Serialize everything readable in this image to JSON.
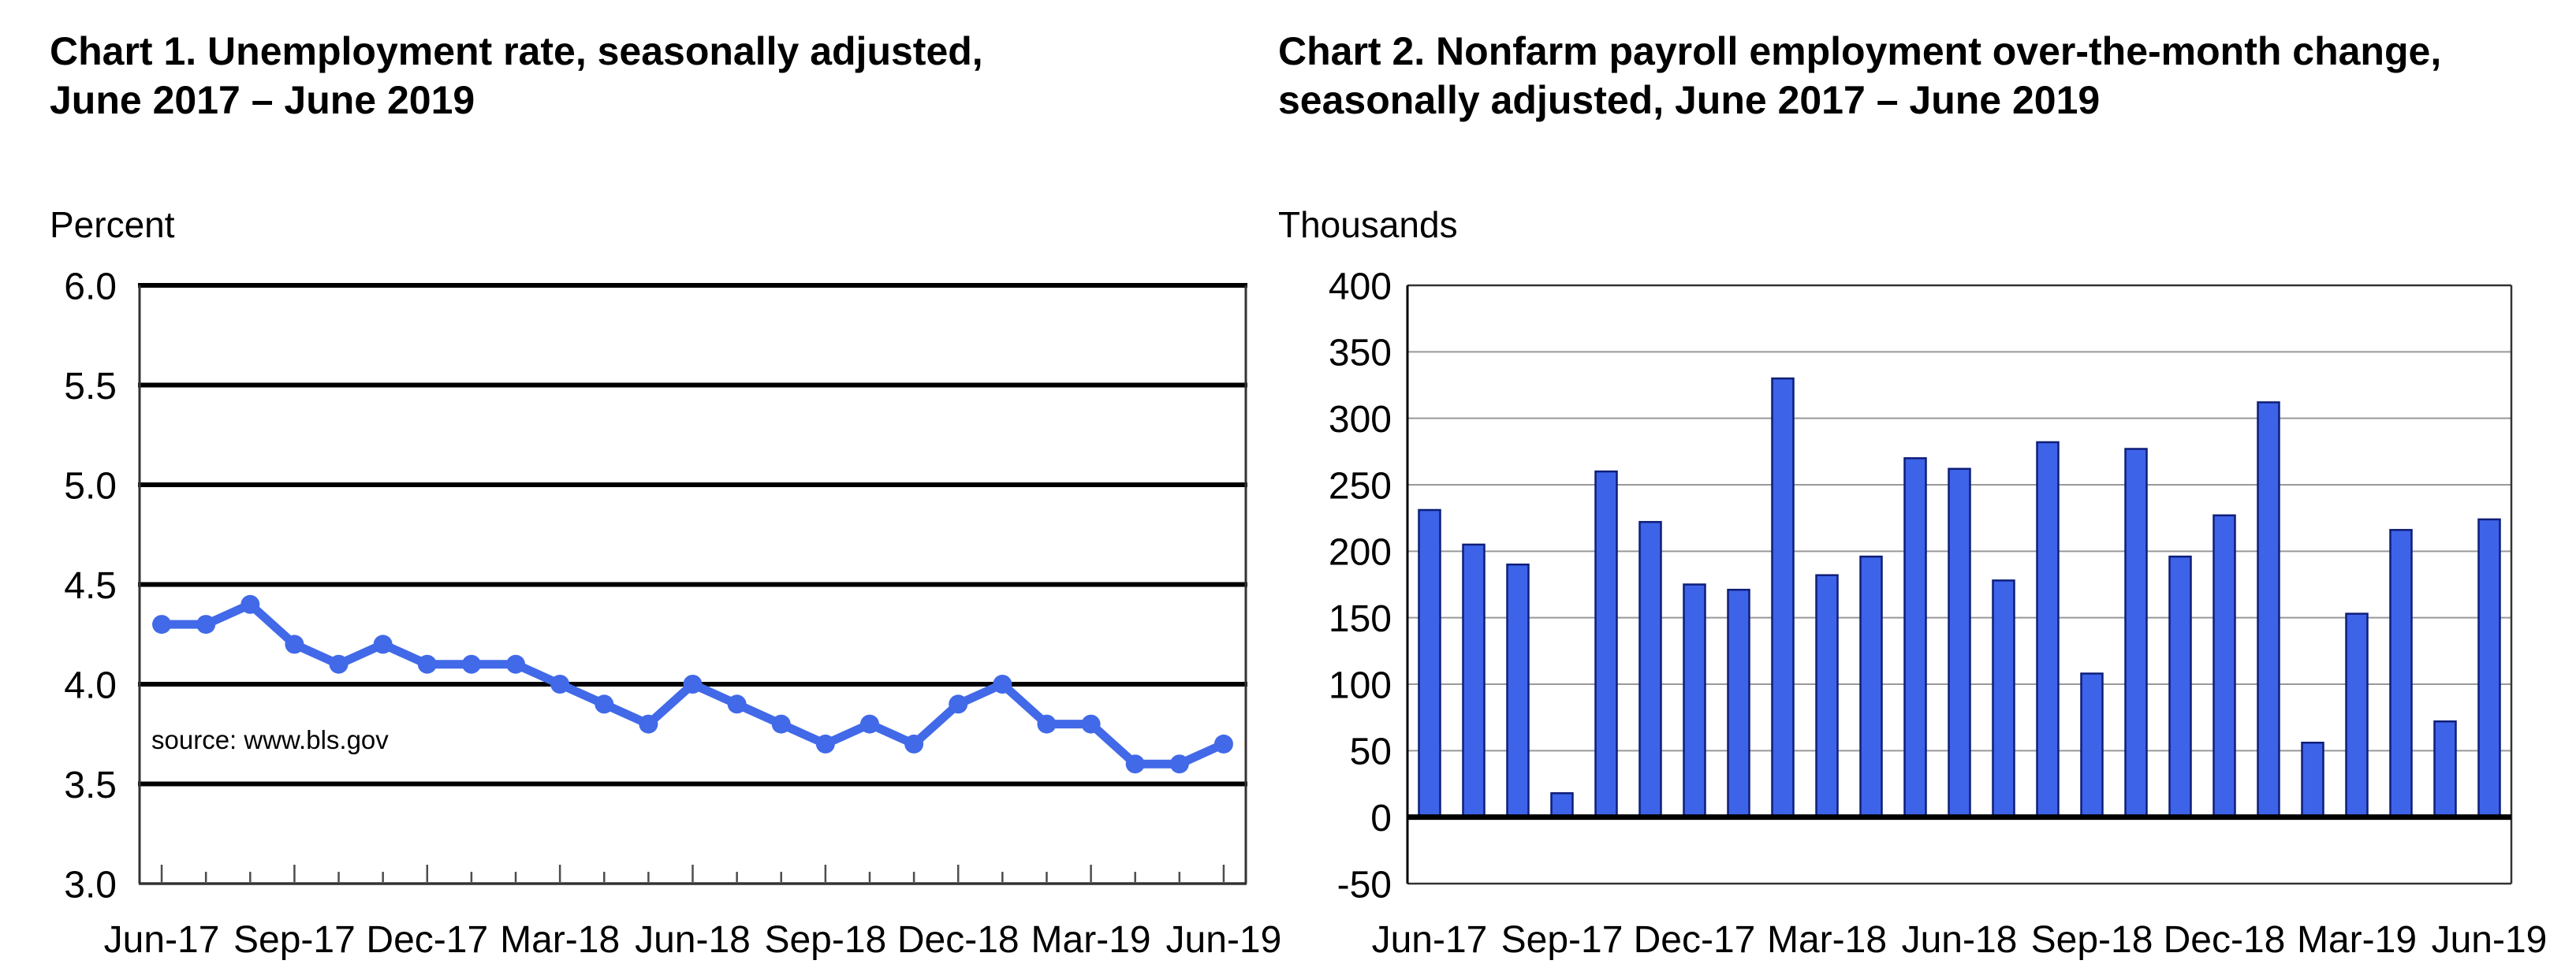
{
  "page": {
    "background": "#ffffff"
  },
  "chart1": {
    "title_line1": "Chart 1. Unemployment rate, seasonally adjusted,",
    "title_line2": "June 2017 – June 2019",
    "unit_label": "Percent",
    "source_note": "source: www.bls.gov"
  },
  "chart2": {
    "title_line1": "Chart 2. Nonfarm payroll employment over-the-month change,",
    "title_line2": "seasonally adjusted, June 2017 – June 2019",
    "unit_label": "Thousands"
  },
  "colors": {
    "line": "#4169e8",
    "marker": "#4169e8",
    "bar_fill": "#3d63e8",
    "bar_border": "#0f1e78",
    "grid_black": "#000000",
    "grid_gray": "#999999",
    "axis_dark": "#333333",
    "tick": "#4d4d4d",
    "text": "#000000"
  },
  "chart_data": [
    {
      "type": "line",
      "title": "Chart 1. Unemployment rate, seasonally adjusted, June 2017 – June 2019",
      "ylabel": "Percent",
      "x": [
        "Jun-17",
        "Jul-17",
        "Aug-17",
        "Sep-17",
        "Oct-17",
        "Nov-17",
        "Dec-17",
        "Jan-18",
        "Feb-18",
        "Mar-18",
        "Apr-18",
        "May-18",
        "Jun-18",
        "Jul-18",
        "Aug-18",
        "Sep-18",
        "Oct-18",
        "Nov-18",
        "Dec-18",
        "Jan-19",
        "Feb-19",
        "Mar-19",
        "Apr-19",
        "May-19",
        "Jun-19"
      ],
      "values": [
        4.3,
        4.3,
        4.4,
        4.2,
        4.1,
        4.2,
        4.1,
        4.1,
        4.1,
        4.0,
        3.9,
        3.8,
        4.0,
        3.9,
        3.8,
        3.7,
        3.8,
        3.7,
        3.9,
        4.0,
        3.8,
        3.8,
        3.6,
        3.6,
        3.7
      ],
      "ylim": [
        3.0,
        6.0
      ],
      "ytick_labels": [
        "6.0",
        "5.5",
        "5.0",
        "4.5",
        "4.0",
        "3.5",
        "3.0"
      ],
      "xtick_shown_every": 3,
      "xtick_labels_shown": [
        "Jun-17",
        "Sep-17",
        "Dec-17",
        "Mar-18",
        "Jun-18",
        "Sep-18",
        "Dec-18",
        "Mar-19",
        "Jun-19"
      ],
      "grid": "horizontal-thick-black",
      "legend": "none",
      "annotation": "source: www.bls.gov"
    },
    {
      "type": "bar",
      "title": "Chart 2. Nonfarm payroll employment over-the-month change, seasonally adjusted, June 2017 – June 2019",
      "ylabel": "Thousands",
      "x": [
        "Jun-17",
        "Jul-17",
        "Aug-17",
        "Sep-17",
        "Oct-17",
        "Nov-17",
        "Dec-17",
        "Jan-18",
        "Feb-18",
        "Mar-18",
        "Apr-18",
        "May-18",
        "Jun-18",
        "Jul-18",
        "Aug-18",
        "Sep-18",
        "Oct-18",
        "Nov-18",
        "Dec-18",
        "Jan-19",
        "Feb-19",
        "Mar-19",
        "Apr-19",
        "May-19",
        "Jun-19"
      ],
      "values": [
        231,
        205,
        190,
        18,
        260,
        222,
        175,
        171,
        330,
        182,
        196,
        270,
        262,
        178,
        282,
        108,
        277,
        196,
        227,
        312,
        56,
        153,
        216,
        72,
        224
      ],
      "ylim": [
        -50,
        400
      ],
      "ytick_labels": [
        "400",
        "350",
        "300",
        "250",
        "200",
        "150",
        "100",
        "50",
        "0",
        "-50"
      ],
      "xtick_shown_every": 3,
      "xtick_labels_shown": [
        "Jun-17",
        "Sep-17",
        "Dec-17",
        "Mar-18",
        "Jun-18",
        "Sep-18",
        "Dec-18",
        "Mar-19",
        "Jun-19"
      ],
      "grid": "horizontal-thin-gray",
      "legend": "none"
    }
  ]
}
